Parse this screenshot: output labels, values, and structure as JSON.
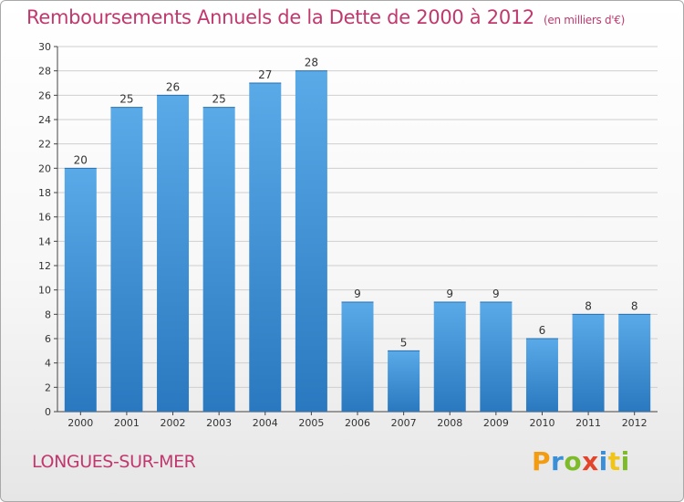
{
  "title": "Remboursements Annuels de la Dette de 2000 à 2012",
  "subtitle": "(en milliers d'€)",
  "commune": "LONGUES-SUR-MER",
  "logo": {
    "letters": [
      "P",
      "r",
      "o",
      "x",
      "i",
      "t",
      "i"
    ],
    "colors": [
      "#f39c12",
      "#3a8fd6",
      "#7dbb2a",
      "#e2452b",
      "#3a8fd6",
      "#f0c419",
      "#7dbb2a"
    ]
  },
  "colors": {
    "bar_top": "#5aaae8",
    "bar_bottom": "#2a78bf",
    "title": "#c0386e",
    "grid": "#cfcfcf"
  },
  "chart_data": {
    "type": "bar",
    "categories": [
      "2000",
      "2001",
      "2002",
      "2003",
      "2004",
      "2005",
      "2006",
      "2007",
      "2008",
      "2009",
      "2010",
      "2011",
      "2012"
    ],
    "values": [
      20,
      25,
      26,
      25,
      27,
      28,
      9,
      5,
      9,
      9,
      6,
      8,
      8
    ],
    "ylim": [
      0,
      30
    ],
    "yticks": [
      0,
      2,
      4,
      6,
      8,
      10,
      12,
      14,
      16,
      18,
      20,
      22,
      24,
      26,
      28,
      30
    ],
    "grid": true,
    "legend": "none"
  }
}
